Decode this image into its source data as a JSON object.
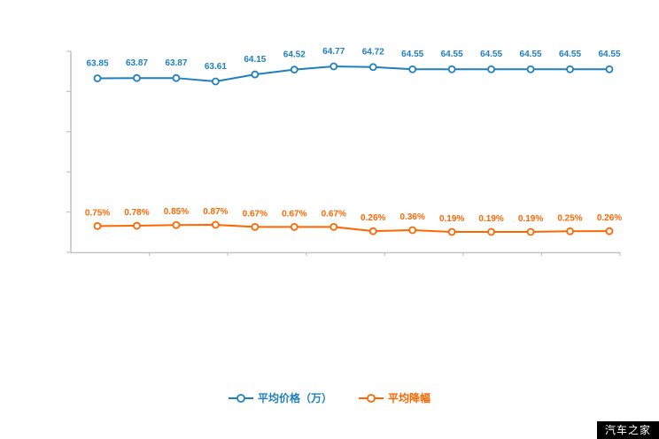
{
  "chart_data": {
    "type": "line",
    "title": "",
    "xlabel": "",
    "ylabel": "",
    "legend_position": "bottom",
    "grid": false,
    "series": [
      {
        "name": "平均价格（万）",
        "color": "#1e7fc1",
        "values": [
          63.85,
          63.87,
          63.87,
          63.61,
          64.15,
          64.52,
          64.77,
          64.72,
          64.55,
          64.55,
          64.55,
          64.55,
          64.55,
          64.55
        ],
        "labels": [
          "63.85",
          "63.87",
          "63.87",
          "63.61",
          "64.15",
          "64.52",
          "64.77",
          "64.72",
          "64.55",
          "64.55",
          "64.55",
          "64.55",
          "64.55",
          "64.55"
        ]
      },
      {
        "name": "平均降幅",
        "color": "#ff6600",
        "values": [
          0.75,
          0.78,
          0.85,
          0.87,
          0.67,
          0.67,
          0.67,
          0.26,
          0.36,
          0.19,
          0.19,
          0.19,
          0.25,
          0.26
        ],
        "labels": [
          "0.75%",
          "0.78%",
          "0.85%",
          "0.87%",
          "0.67%",
          "0.67%",
          "0.67%",
          "0.26%",
          "0.36%",
          "0.19%",
          "0.19%",
          "0.19%",
          "0.25%",
          "0.26%"
        ]
      }
    ]
  },
  "legend": {
    "price_label": "平均价格（万）",
    "discount_label": "平均降幅"
  },
  "watermark": "汽车之家",
  "colors": {
    "axis": "#c2c2c2",
    "blue": "#1e7fc1",
    "orange": "#ff6600",
    "watermark_bg": "#000000",
    "watermark_text": "#ffffff"
  }
}
